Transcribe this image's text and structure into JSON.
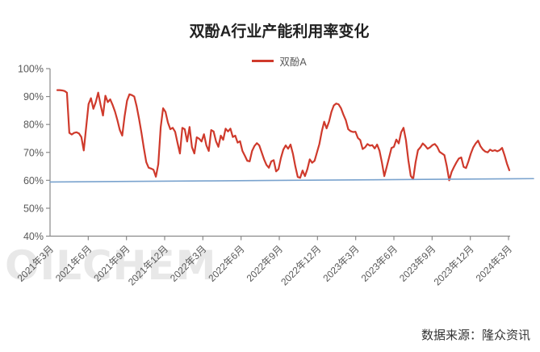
{
  "watermark": {
    "text": "OILCHEM",
    "color": "#e8e8e8"
  },
  "source_note": {
    "text": "数据来源：隆众资讯"
  },
  "chart_data": {
    "type": "line",
    "title": "双酚A行业产能利用率变化",
    "xlabel": "",
    "ylabel": "",
    "ylim": [
      40,
      100
    ],
    "grid": false,
    "legend_position": "top-center",
    "legend": {
      "label": "双酚A",
      "color": "#cf3a2c"
    },
    "y_tick_labels": [
      "100%",
      "90%",
      "80%",
      "70%",
      "60%",
      "50%",
      "40%"
    ],
    "x_tick_labels": [
      "2021年3月",
      "2021年6月",
      "2021年9月",
      "2021年12月",
      "2022年3月",
      "2022年6月",
      "2022年9月",
      "2022年12月",
      "2023年3月",
      "2023年6月",
      "2023年9月",
      "2023年12月",
      "2024年3月"
    ],
    "axis_color": "#8a8a8a",
    "tick_label_color": "#595959",
    "series": [
      {
        "name": "双酚A",
        "color": "#cf3a2c",
        "stroke_width": 2.2,
        "unit": "%",
        "values": [
          92.3,
          92.3,
          92.2,
          92.0,
          91.4,
          77.0,
          76.4,
          77.0,
          77.2,
          76.8,
          75.5,
          70.7,
          79.0,
          87.3,
          89.4,
          85.6,
          88.0,
          91.4,
          87.0,
          83.2,
          90.3,
          88.0,
          89.0,
          87.0,
          84.6,
          81.5,
          78.0,
          76.0,
          83.0,
          88.5,
          90.8,
          90.5,
          90.0,
          86.5,
          82.0,
          77.0,
          71.5,
          66.5,
          64.5,
          64.2,
          63.8,
          61.3,
          65.8,
          79.0,
          85.8,
          84.5,
          80.7,
          78.3,
          78.8,
          77.4,
          73.4,
          69.6,
          78.8,
          78.3,
          73.9,
          79.1,
          71.9,
          69.6,
          75.4,
          74.9,
          73.9,
          76.5,
          72.5,
          70.5,
          78.0,
          77.5,
          74.0,
          72.0,
          76.0,
          74.5,
          78.5,
          77.5,
          78.5,
          75.5,
          76.0,
          73.5,
          74.0,
          70.5,
          68.8,
          67.0,
          66.8,
          70.5,
          72.3,
          73.3,
          72.5,
          70.0,
          67.5,
          65.5,
          64.5,
          66.8,
          67.2,
          63.2,
          64.0,
          68.0,
          71.0,
          72.5,
          71.3,
          72.8,
          69.5,
          65.0,
          61.2,
          60.9,
          63.5,
          61.5,
          64.0,
          67.5,
          66.3,
          67.0,
          70.0,
          73.0,
          77.5,
          81.0,
          78.6,
          81.0,
          84.5,
          86.8,
          87.5,
          87.2,
          85.8,
          83.5,
          81.5,
          78.3,
          77.6,
          77.3,
          77.4,
          75.2,
          74.4,
          71.2,
          71.8,
          73.0,
          72.4,
          72.6,
          71.4,
          72.8,
          70.6,
          66.4,
          61.5,
          64.8,
          68.2,
          71.6,
          72.0,
          74.6,
          73.2,
          77.2,
          78.8,
          74.4,
          67.2,
          61.6,
          60.4,
          66.4,
          70.8,
          71.8,
          73.2,
          72.4,
          71.3,
          71.8,
          72.6,
          73.0,
          72.0,
          70.2,
          69.6,
          69.0,
          65.0,
          60.0,
          63.0,
          64.8,
          66.4,
          67.8,
          68.2,
          64.8,
          64.4,
          66.8,
          69.6,
          71.8,
          73.2,
          74.2,
          72.2,
          71.0,
          70.3,
          70.0,
          71.0,
          70.5,
          70.8,
          70.4,
          70.8,
          71.6,
          69.0,
          66.0,
          63.6
        ]
      },
      {
        "name": "",
        "color": "#7aa3ce",
        "stroke_width": 1.6,
        "unit": "%",
        "values": [
          59.4,
          59.6,
          59.8,
          60.0,
          60.2,
          60.4,
          60.6
        ]
      }
    ]
  }
}
